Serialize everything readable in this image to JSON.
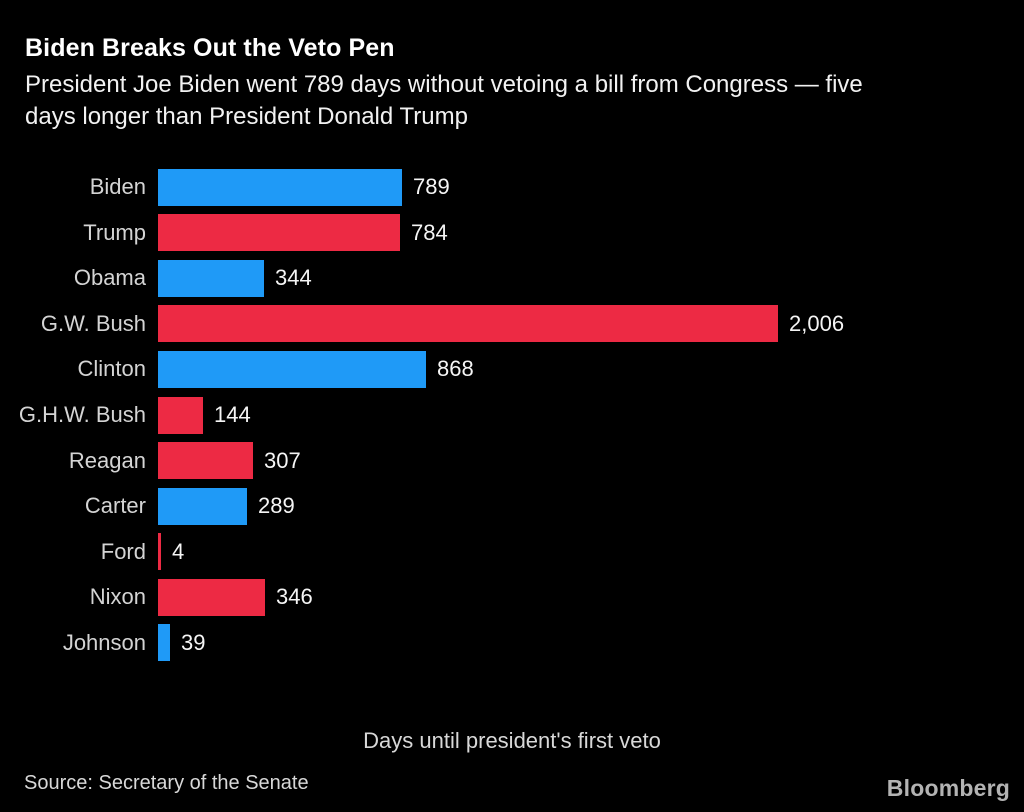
{
  "header": {
    "title": "Biden Breaks Out the Veto Pen",
    "subtitle_line1": "President Joe Biden went 789 days without vetoing a bill from Congress — five",
    "subtitle_line2": "days longer than President Donald Trump"
  },
  "chart_data": {
    "type": "bar",
    "orientation": "horizontal",
    "title": "Biden Breaks Out the Veto Pen",
    "subtitle": "President Joe Biden went 789 days without vetoing a bill from Congress — five days longer than President Donald Trump",
    "xlabel": "Days until president's first veto",
    "ylabel": "",
    "xlim": [
      0,
      2006
    ],
    "grid": false,
    "legend": false,
    "categories": [
      "Biden",
      "Trump",
      "Obama",
      "G.W. Bush",
      "Clinton",
      "G.H.W. Bush",
      "Reagan",
      "Carter",
      "Ford",
      "Nixon",
      "Johnson"
    ],
    "values": [
      789,
      784,
      344,
      2006,
      868,
      144,
      307,
      289,
      4,
      346,
      39
    ],
    "rows": [
      {
        "label": "Biden",
        "value": 789,
        "display": "789",
        "party": "D"
      },
      {
        "label": "Trump",
        "value": 784,
        "display": "784",
        "party": "R"
      },
      {
        "label": "Obama",
        "value": 344,
        "display": "344",
        "party": "D"
      },
      {
        "label": "G.W. Bush",
        "value": 2006,
        "display": "2,006",
        "party": "R"
      },
      {
        "label": "Clinton",
        "value": 868,
        "display": "868",
        "party": "D"
      },
      {
        "label": "G.H.W. Bush",
        "value": 144,
        "display": "144",
        "party": "R"
      },
      {
        "label": "Reagan",
        "value": 307,
        "display": "307",
        "party": "R"
      },
      {
        "label": "Carter",
        "value": 289,
        "display": "289",
        "party": "D"
      },
      {
        "label": "Ford",
        "value": 4,
        "display": "4",
        "party": "R"
      },
      {
        "label": "Nixon",
        "value": 346,
        "display": "346",
        "party": "R"
      },
      {
        "label": "Johnson",
        "value": 39,
        "display": "39",
        "party": "D"
      }
    ],
    "colors": {
      "democrat": "#1f9af7",
      "republican": "#ed2a44"
    }
  },
  "footer": {
    "source": "Source: Secretary of the Senate",
    "brand": "Bloomberg"
  }
}
